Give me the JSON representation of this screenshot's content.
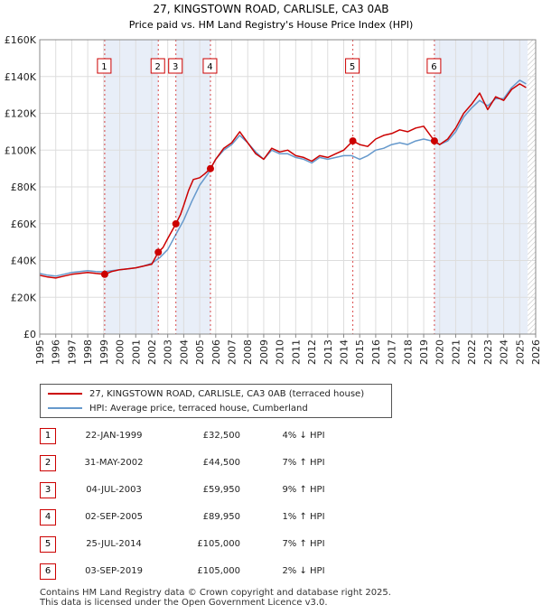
{
  "chart_data": {
    "type": "line",
    "title": "27, KINGSTOWN ROAD, CARLISLE, CA3 0AB",
    "subtitle": "Price paid vs. HM Land Registry's House Price Index (HPI)",
    "xlim": [
      1995,
      2026
    ],
    "ylim": [
      0,
      160000
    ],
    "y_ticks": [
      0,
      20000,
      40000,
      60000,
      80000,
      100000,
      120000,
      140000,
      160000
    ],
    "y_tick_labels": [
      "£0",
      "£20K",
      "£40K",
      "£60K",
      "£80K",
      "£100K",
      "£120K",
      "£140K",
      "£160K"
    ],
    "x_ticks": [
      1995,
      1996,
      1997,
      1998,
      1999,
      2000,
      2001,
      2002,
      2003,
      2004,
      2005,
      2006,
      2007,
      2008,
      2009,
      2010,
      2011,
      2012,
      2013,
      2014,
      2015,
      2016,
      2017,
      2018,
      2019,
      2020,
      2021,
      2022,
      2023,
      2024,
      2025,
      2026
    ],
    "x_tick_labels": [
      "1995",
      "1996",
      "1997",
      "1998",
      "1999",
      "2000",
      "2001",
      "2002",
      "2003",
      "2004",
      "2005",
      "2006",
      "2007",
      "2008",
      "2009",
      "2010",
      "2011",
      "2012",
      "2013",
      "2014",
      "2015",
      "2016",
      "2017",
      "2018",
      "2019",
      "2020",
      "2021",
      "2022",
      "2023",
      "2024",
      "2025",
      "2026"
    ],
    "grid": true,
    "shaded_periods": [
      [
        1999.06,
        2002.41
      ],
      [
        2003.51,
        2005.67
      ],
      [
        2019.67,
        2025.5
      ]
    ],
    "future_hatch_from": 2025.5,
    "series": [
      {
        "name": "27, KINGSTOWN ROAD, CARLISLE, CA3 0AB (terraced house)",
        "color": "#cc0000",
        "x": [
          1995,
          1995.5,
          1996,
          1996.5,
          1997,
          1997.5,
          1998,
          1998.5,
          1999.06,
          1999.5,
          2000,
          2000.5,
          2001,
          2001.5,
          2002,
          2002.41,
          2002.7,
          2003,
          2003.51,
          2003.8,
          2004,
          2004.3,
          2004.6,
          2005,
          2005.3,
          2005.67,
          2006,
          2006.5,
          2007,
          2007.5,
          2008,
          2008.5,
          2009,
          2009.5,
          2010,
          2010.5,
          2011,
          2011.5,
          2012,
          2012.5,
          2013,
          2013.5,
          2014,
          2014.57,
          2015,
          2015.5,
          2016,
          2016.5,
          2017,
          2017.5,
          2018,
          2018.5,
          2019,
          2019.67,
          2020,
          2020.5,
          2021,
          2021.5,
          2022,
          2022.5,
          2023,
          2023.5,
          2024,
          2024.5,
          2025,
          2025.4
        ],
        "y": [
          32000,
          31000,
          30500,
          31500,
          32500,
          33000,
          33500,
          33000,
          32500,
          34000,
          35000,
          35500,
          36000,
          37000,
          38000,
          44500,
          47000,
          52000,
          59950,
          65000,
          70000,
          78000,
          84000,
          85000,
          87000,
          89950,
          95000,
          101000,
          104000,
          110000,
          104000,
          98000,
          95000,
          101000,
          99000,
          100000,
          97000,
          96000,
          94000,
          97000,
          96000,
          98000,
          100000,
          105000,
          103000,
          102000,
          106000,
          108000,
          109000,
          111000,
          110000,
          112000,
          113000,
          105000,
          103000,
          106000,
          112000,
          120000,
          125000,
          131000,
          122000,
          129000,
          127000,
          133000,
          136000,
          134000
        ]
      },
      {
        "name": "HPI: Average price, terraced house, Cumberland",
        "color": "#6699cc",
        "x": [
          1995,
          1995.5,
          1996,
          1996.5,
          1997,
          1997.5,
          1998,
          1998.5,
          1999,
          1999.5,
          2000,
          2000.5,
          2001,
          2001.5,
          2002,
          2002.5,
          2003,
          2003.5,
          2004,
          2004.5,
          2005,
          2005.5,
          2006,
          2006.5,
          2007,
          2007.5,
          2008,
          2008.5,
          2009,
          2009.5,
          2010,
          2010.5,
          2011,
          2011.5,
          2012,
          2012.5,
          2013,
          2013.5,
          2014,
          2014.5,
          2015,
          2015.5,
          2016,
          2016.5,
          2017,
          2017.5,
          2018,
          2018.5,
          2019,
          2019.5,
          2020,
          2020.5,
          2021,
          2021.5,
          2022,
          2022.5,
          2023,
          2023.5,
          2024,
          2024.5,
          2025,
          2025.4
        ],
        "y": [
          33000,
          32000,
          31500,
          32500,
          33500,
          34000,
          34500,
          34000,
          33800,
          34500,
          35000,
          35500,
          36000,
          37000,
          38500,
          41500,
          46000,
          54000,
          62000,
          72000,
          81000,
          87000,
          95000,
          100000,
          103000,
          108000,
          104000,
          99000,
          95000,
          100000,
          98000,
          98000,
          96000,
          95000,
          93000,
          96000,
          95000,
          96000,
          97000,
          97000,
          95000,
          97000,
          100000,
          101000,
          103000,
          104000,
          103000,
          105000,
          106000,
          105000,
          103000,
          105000,
          110000,
          118000,
          123000,
          127000,
          124000,
          128000,
          128000,
          134000,
          138000,
          136000
        ]
      }
    ],
    "sale_markers": [
      {
        "label": "1",
        "x": 1999.06,
        "y": 32500
      },
      {
        "label": "2",
        "x": 2002.41,
        "y": 44500
      },
      {
        "label": "3",
        "x": 2003.51,
        "y": 59950
      },
      {
        "label": "4",
        "x": 2005.67,
        "y": 89950
      },
      {
        "label": "5",
        "x": 2014.57,
        "y": 105000
      },
      {
        "label": "6",
        "x": 2019.67,
        "y": 105000
      }
    ]
  },
  "legend": {
    "property_label": "27, KINGSTOWN ROAD, CARLISLE, CA3 0AB (terraced house)",
    "hpi_label": "HPI: Average price, terraced house, Cumberland"
  },
  "sales": [
    {
      "num": "1",
      "date": "22-JAN-1999",
      "price": "£32,500",
      "hpi": "4% ↓ HPI"
    },
    {
      "num": "2",
      "date": "31-MAY-2002",
      "price": "£44,500",
      "hpi": "7% ↑ HPI"
    },
    {
      "num": "3",
      "date": "04-JUL-2003",
      "price": "£59,950",
      "hpi": "9% ↑ HPI"
    },
    {
      "num": "4",
      "date": "02-SEP-2005",
      "price": "£89,950",
      "hpi": "1% ↑ HPI"
    },
    {
      "num": "5",
      "date": "25-JUL-2014",
      "price": "£105,000",
      "hpi": "7% ↑ HPI"
    },
    {
      "num": "6",
      "date": "03-SEP-2019",
      "price": "£105,000",
      "hpi": "2% ↓ HPI"
    }
  ],
  "footer": {
    "line1": "Contains HM Land Registry data © Crown copyright and database right 2025.",
    "line2": "This data is licensed under the Open Government Licence v3.0."
  },
  "colors": {
    "property": "#cc0000",
    "hpi": "#6699cc",
    "shade": "#e8eef8",
    "grid": "#dddddd"
  }
}
